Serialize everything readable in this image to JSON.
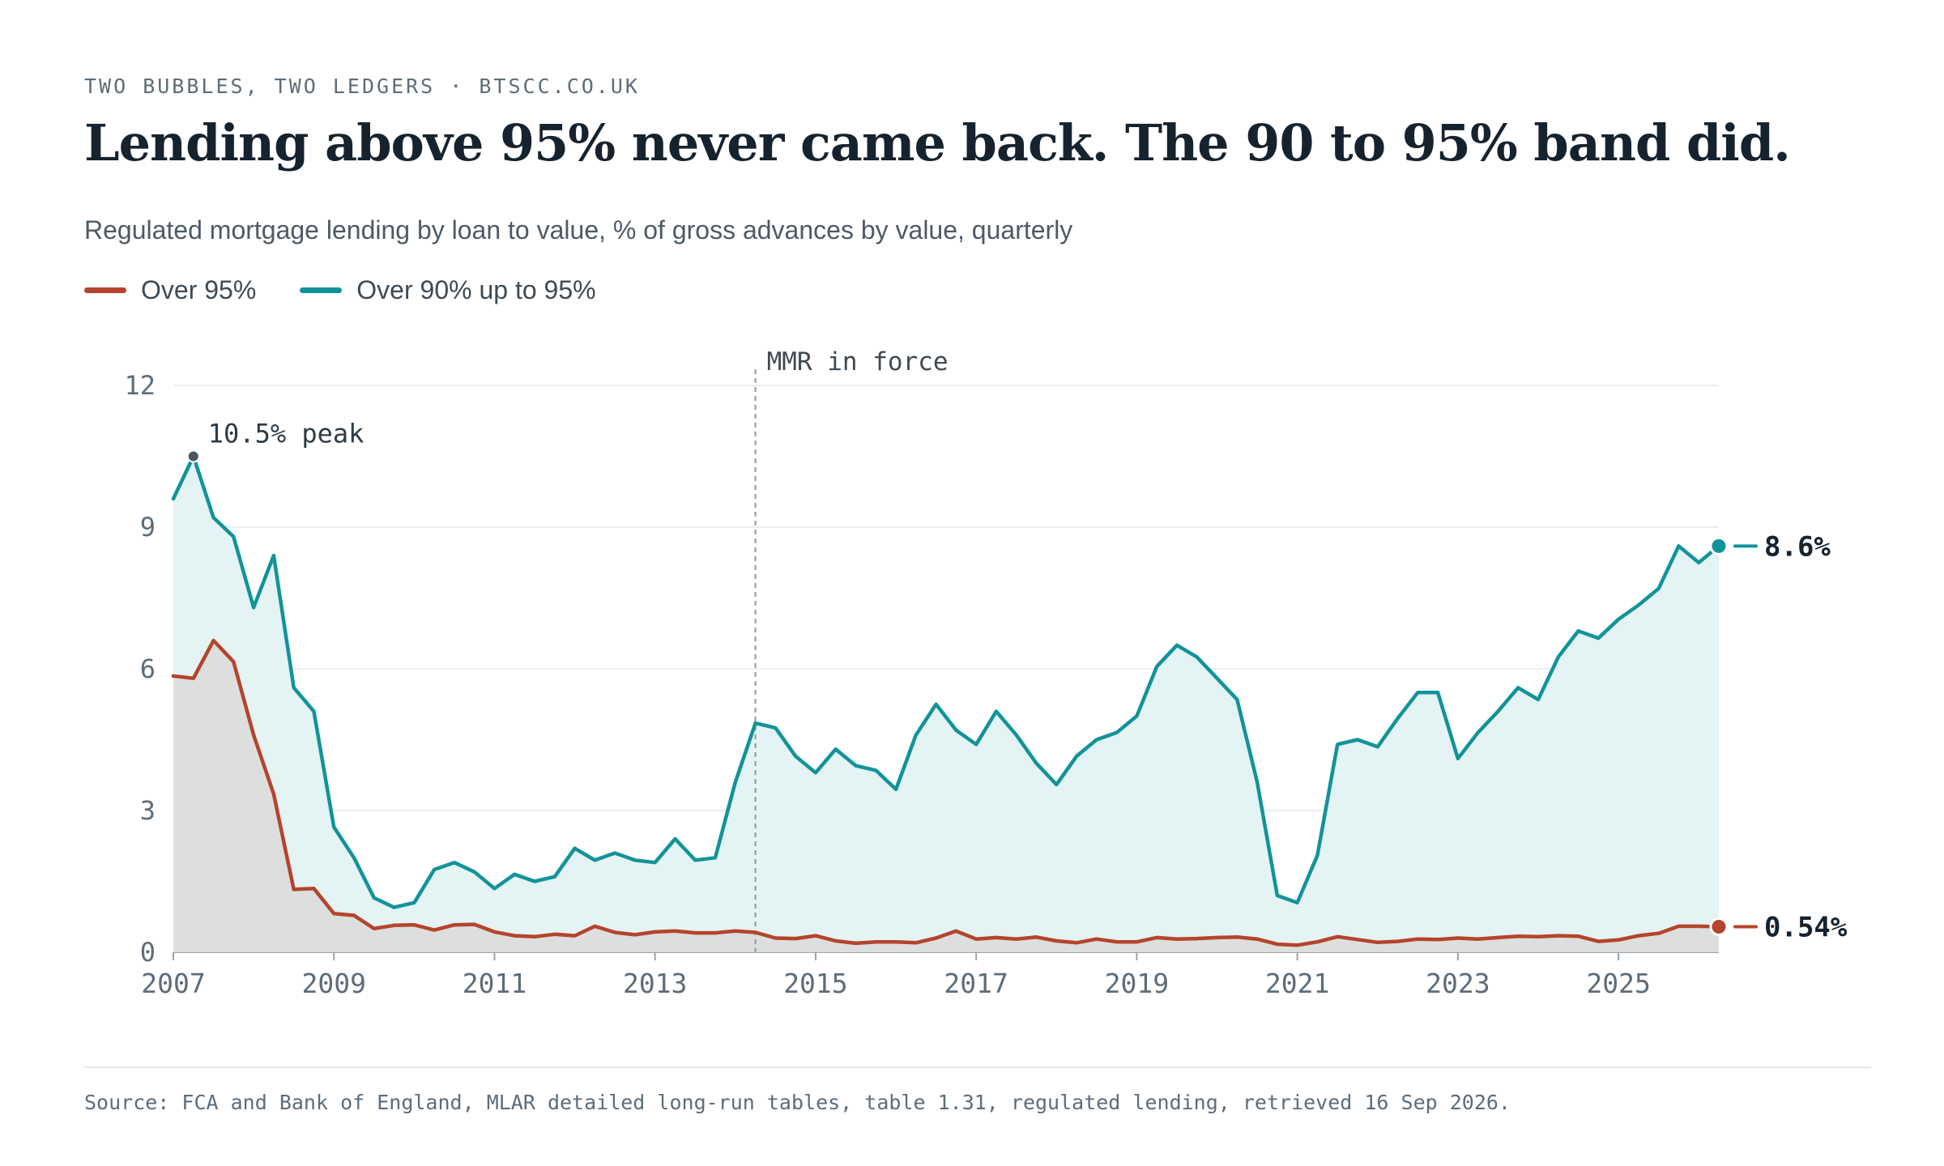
{
  "header": {
    "kicker": "TWO BUBBLES, TWO LEDGERS · BTSCC.CO.UK",
    "title": "Lending above 95% never came back. The 90 to 95% band did.",
    "subtitle": "Regulated mortgage lending by loan to value, % of gross advances by value, quarterly"
  },
  "colors": {
    "over95": "#b5442c",
    "band90_95": "#12939a",
    "band_fill": "#e4f3f3",
    "over95_fill": "#dcdfdd",
    "grid": "#e3e6e8",
    "axis_text": "#5e6c78",
    "peak_marker": "#4a5560"
  },
  "chart_data": {
    "type": "area",
    "title": "Lending above 95% never came back. The 90 to 95% band did.",
    "subtitle": "Regulated mortgage lending by loan to value, % of gross advances by value, quarterly",
    "xlabel": "",
    "ylabel": "",
    "ylim": [
      0,
      12
    ],
    "yticks": [
      0,
      3,
      6,
      9,
      12
    ],
    "xlim": [
      2007,
      2026.25
    ],
    "xticks": [
      2007,
      2009,
      2011,
      2013,
      2015,
      2017,
      2019,
      2021,
      2023,
      2025
    ],
    "grid": true,
    "legend": "top-left",
    "x_start": 2007,
    "x_step": 0.25,
    "series": [
      {
        "name": "Over 95%",
        "color": "#b5442c",
        "values": [
          5.85,
          5.8,
          6.6,
          6.15,
          4.6,
          3.35,
          1.33,
          1.35,
          0.82,
          0.78,
          0.5,
          0.57,
          0.58,
          0.47,
          0.58,
          0.59,
          0.43,
          0.35,
          0.33,
          0.38,
          0.35,
          0.55,
          0.42,
          0.37,
          0.43,
          0.45,
          0.41,
          0.41,
          0.45,
          0.42,
          0.3,
          0.29,
          0.35,
          0.24,
          0.19,
          0.22,
          0.22,
          0.2,
          0.3,
          0.45,
          0.28,
          0.31,
          0.28,
          0.32,
          0.24,
          0.2,
          0.28,
          0.22,
          0.22,
          0.31,
          0.28,
          0.29,
          0.31,
          0.32,
          0.28,
          0.17,
          0.15,
          0.22,
          0.33,
          0.27,
          0.21,
          0.23,
          0.28,
          0.27,
          0.3,
          0.28,
          0.31,
          0.34,
          0.33,
          0.35,
          0.34,
          0.23,
          0.26,
          0.35,
          0.4,
          0.55,
          0.55,
          0.54
        ]
      },
      {
        "name": "Over 90% up to 95%",
        "color": "#12939a",
        "values": [
          9.6,
          10.5,
          9.2,
          8.8,
          7.3,
          8.4,
          5.6,
          5.1,
          2.65,
          2.0,
          1.15,
          0.95,
          1.05,
          1.75,
          1.9,
          1.7,
          1.35,
          1.65,
          1.5,
          1.6,
          2.2,
          1.95,
          2.1,
          1.95,
          1.9,
          2.4,
          1.95,
          2.0,
          3.6,
          4.85,
          4.75,
          4.15,
          3.8,
          4.3,
          3.95,
          3.85,
          3.45,
          4.6,
          5.25,
          4.7,
          4.4,
          5.1,
          4.6,
          4.0,
          3.55,
          4.15,
          4.5,
          4.65,
          5.0,
          6.05,
          6.5,
          6.25,
          5.8,
          5.35,
          3.6,
          1.2,
          1.05,
          2.05,
          4.4,
          4.5,
          4.35,
          4.95,
          5.5,
          5.5,
          4.1,
          4.65,
          5.1,
          5.6,
          5.35,
          6.25,
          6.8,
          6.65,
          7.05,
          7.35,
          7.7,
          8.6,
          8.25,
          8.6
        ]
      }
    ],
    "annotations": [
      {
        "label": "MMR in force",
        "x": 2014.25,
        "kind": "vertical-line"
      },
      {
        "label": "10.5% peak",
        "x": 2007.25,
        "y": 10.5,
        "kind": "point"
      }
    ],
    "end_labels": [
      "0.54%",
      "8.6%"
    ]
  },
  "source": "Source: FCA and Bank of England, MLAR detailed long-run tables, table 1.31, regulated lending, retrieved 16 Sep 2026."
}
